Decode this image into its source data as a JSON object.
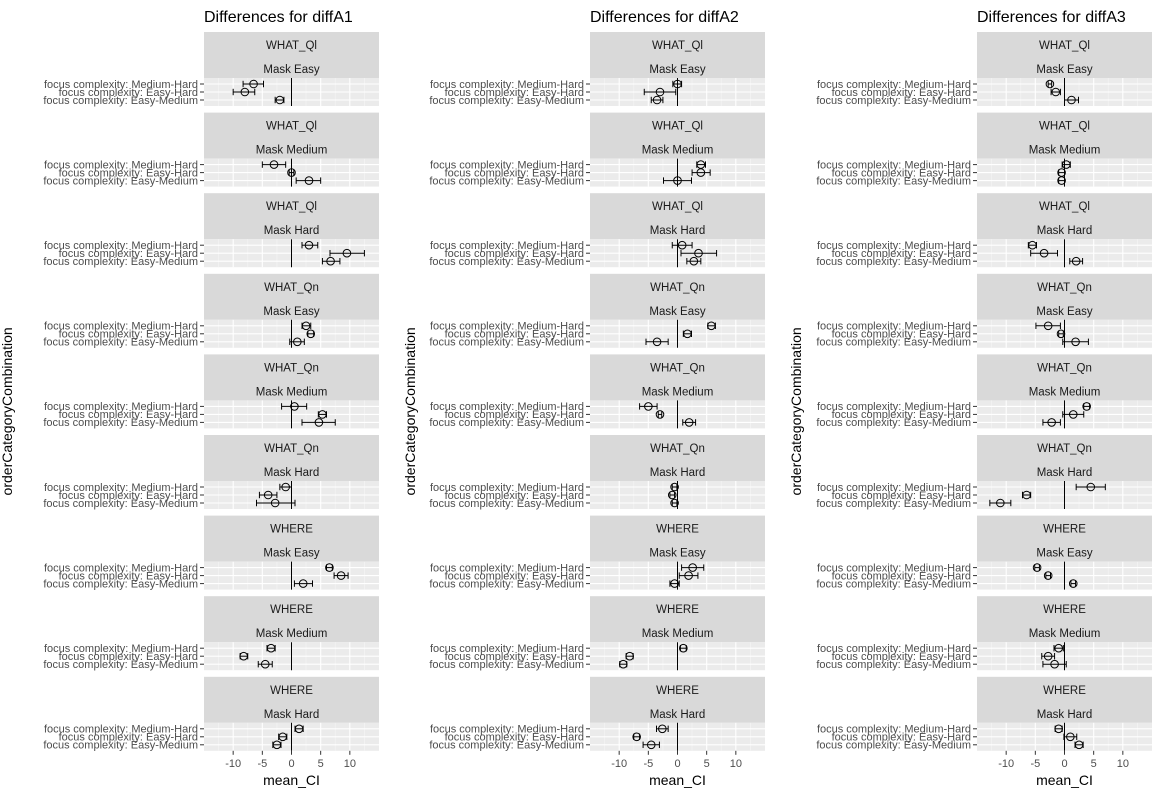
{
  "chart_data": {
    "type": "forest",
    "x_axis_label": "mean_CI",
    "y_axis_label": "orderCategoryCombination",
    "xlim": [
      -15,
      15
    ],
    "x_ticks": [
      -10,
      -5,
      0,
      5,
      10
    ],
    "y_categories": [
      "focus complexity: Medium-Hard",
      "focus complexity: Easy-Hard",
      "focus complexity: Easy-Medium"
    ],
    "facet_rows": [
      {
        "category": "WHAT_Ql",
        "mask": "Mask Easy"
      },
      {
        "category": "WHAT_Ql",
        "mask": "Mask Medium"
      },
      {
        "category": "WHAT_Ql",
        "mask": "Mask Hard"
      },
      {
        "category": "WHAT_Qn",
        "mask": "Mask Easy"
      },
      {
        "category": "WHAT_Qn",
        "mask": "Mask Medium"
      },
      {
        "category": "WHAT_Qn",
        "mask": "Mask Hard"
      },
      {
        "category": "WHERE",
        "mask": "Mask Easy"
      },
      {
        "category": "WHERE",
        "mask": "Mask Medium"
      },
      {
        "category": "WHERE",
        "mask": "Mask Hard"
      }
    ],
    "panels": [
      {
        "title": "Differences for diffA1",
        "show_y_axis_title": false,
        "facets": [
          {
            "points": [
              {
                "mean": -6.5,
                "low": -8.3,
                "high": -4.8
              },
              {
                "mean": -8.0,
                "low": -10.0,
                "high": -6.3
              },
              {
                "mean": -2.0,
                "low": -2.8,
                "high": -1.3
              }
            ]
          },
          {
            "points": [
              {
                "mean": -3.0,
                "low": -5.0,
                "high": -1.0
              },
              {
                "mean": 0.0,
                "low": -0.4,
                "high": 0.4
              },
              {
                "mean": 3.0,
                "low": 0.8,
                "high": 5.0
              }
            ]
          },
          {
            "points": [
              {
                "mean": 3.0,
                "low": 1.8,
                "high": 4.5
              },
              {
                "mean": 9.5,
                "low": 6.6,
                "high": 12.5
              },
              {
                "mean": 6.7,
                "low": 5.3,
                "high": 8.3
              }
            ]
          },
          {
            "points": [
              {
                "mean": 2.5,
                "low": 1.8,
                "high": 3.3
              },
              {
                "mean": 3.3,
                "low": 2.8,
                "high": 3.8
              },
              {
                "mean": 1.0,
                "low": -0.3,
                "high": 2.2
              }
            ]
          },
          {
            "points": [
              {
                "mean": 0.5,
                "low": -1.7,
                "high": 2.6
              },
              {
                "mean": 5.3,
                "low": 4.6,
                "high": 6.0
              },
              {
                "mean": 4.7,
                "low": 1.8,
                "high": 7.5
              }
            ]
          },
          {
            "points": [
              {
                "mean": -1.0,
                "low": -2.0,
                "high": 0.0
              },
              {
                "mean": -4.0,
                "low": -5.5,
                "high": -2.5
              },
              {
                "mean": -2.8,
                "low": -6.0,
                "high": 0.6
              }
            ]
          },
          {
            "points": [
              {
                "mean": 6.5,
                "low": 6.0,
                "high": 7.0
              },
              {
                "mean": 8.5,
                "low": 7.3,
                "high": 9.7
              },
              {
                "mean": 2.0,
                "low": 0.5,
                "high": 3.6
              }
            ]
          },
          {
            "points": [
              {
                "mean": -3.5,
                "low": -4.2,
                "high": -2.8
              },
              {
                "mean": -8.2,
                "low": -8.8,
                "high": -7.5
              },
              {
                "mean": -4.5,
                "low": -5.7,
                "high": -3.3
              }
            ]
          },
          {
            "points": [
              {
                "mean": 1.3,
                "low": 0.6,
                "high": 2.0
              },
              {
                "mean": -1.5,
                "low": -2.2,
                "high": -0.8
              },
              {
                "mean": -2.5,
                "low": -3.2,
                "high": -1.8
              }
            ]
          }
        ]
      },
      {
        "title": "Differences for diffA2",
        "show_y_axis_title": true,
        "facets": [
          {
            "points": [
              {
                "mean": 0.0,
                "low": -0.8,
                "high": 0.7
              },
              {
                "mean": -3.0,
                "low": -5.7,
                "high": -0.3
              },
              {
                "mean": -3.5,
                "low": -4.5,
                "high": -2.5
              }
            ]
          },
          {
            "points": [
              {
                "mean": 4.0,
                "low": 3.3,
                "high": 4.8
              },
              {
                "mean": 4.0,
                "low": 2.5,
                "high": 5.6
              },
              {
                "mean": 0.0,
                "low": -2.4,
                "high": 2.4
              }
            ]
          },
          {
            "points": [
              {
                "mean": 0.8,
                "low": -0.9,
                "high": 2.5
              },
              {
                "mean": 3.6,
                "low": 0.6,
                "high": 6.7
              },
              {
                "mean": 2.8,
                "low": 1.6,
                "high": 4.0
              }
            ]
          },
          {
            "points": [
              {
                "mean": 5.8,
                "low": 5.2,
                "high": 6.5
              },
              {
                "mean": 1.7,
                "low": 1.0,
                "high": 2.4
              },
              {
                "mean": -3.5,
                "low": -5.4,
                "high": -1.6
              }
            ]
          },
          {
            "points": [
              {
                "mean": -5.0,
                "low": -6.5,
                "high": -3.5
              },
              {
                "mean": -3.0,
                "low": -3.3,
                "high": -2.7
              },
              {
                "mean": 2.0,
                "low": 0.9,
                "high": 3.1
              }
            ]
          },
          {
            "points": [
              {
                "mean": -0.5,
                "low": -0.9,
                "high": -0.1
              },
              {
                "mean": -0.9,
                "low": -1.3,
                "high": -0.5
              },
              {
                "mean": -0.5,
                "low": -0.9,
                "high": -0.1
              }
            ]
          },
          {
            "points": [
              {
                "mean": 2.6,
                "low": 0.7,
                "high": 4.5
              },
              {
                "mean": 1.9,
                "low": 0.3,
                "high": 3.5
              },
              {
                "mean": -0.5,
                "low": -1.3,
                "high": 0.3
              }
            ]
          },
          {
            "points": [
              {
                "mean": 1.0,
                "low": 0.5,
                "high": 1.5
              },
              {
                "mean": -8.2,
                "low": -8.8,
                "high": -7.6
              },
              {
                "mean": -9.3,
                "low": -9.9,
                "high": -8.7
              }
            ]
          },
          {
            "points": [
              {
                "mean": -2.6,
                "low": -3.6,
                "high": -1.6
              },
              {
                "mean": -7.0,
                "low": -7.5,
                "high": -6.5
              },
              {
                "mean": -4.5,
                "low": -5.9,
                "high": -3.1
              }
            ]
          }
        ]
      },
      {
        "title": "Differences for diffA3",
        "show_y_axis_title": true,
        "facets": [
          {
            "points": [
              {
                "mean": -2.5,
                "low": -2.8,
                "high": -2.2
              },
              {
                "mean": -1.5,
                "low": -2.3,
                "high": -0.7
              },
              {
                "mean": 1.2,
                "low": 0.0,
                "high": 2.4
              }
            ]
          },
          {
            "points": [
              {
                "mean": 0.3,
                "low": -0.4,
                "high": 1.0
              },
              {
                "mean": -0.5,
                "low": -1.0,
                "high": 0.0
              },
              {
                "mean": -0.5,
                "low": -1.0,
                "high": 0.0
              }
            ]
          },
          {
            "points": [
              {
                "mean": -5.5,
                "low": -6.2,
                "high": -4.8
              },
              {
                "mean": -3.5,
                "low": -5.8,
                "high": -1.2
              },
              {
                "mean": 2.0,
                "low": 0.9,
                "high": 3.1
              }
            ]
          },
          {
            "points": [
              {
                "mean": -2.8,
                "low": -4.9,
                "high": -0.7
              },
              {
                "mean": -0.6,
                "low": -1.0,
                "high": -0.2
              },
              {
                "mean": 1.9,
                "low": -0.3,
                "high": 4.1
              }
            ]
          },
          {
            "points": [
              {
                "mean": 3.8,
                "low": 3.3,
                "high": 4.3
              },
              {
                "mean": 1.5,
                "low": -0.3,
                "high": 3.3
              },
              {
                "mean": -2.2,
                "low": -3.7,
                "high": -0.7
              }
            ]
          },
          {
            "points": [
              {
                "mean": 4.5,
                "low": 2.0,
                "high": 7.0
              },
              {
                "mean": -6.5,
                "low": -7.2,
                "high": -5.8
              },
              {
                "mean": -11.0,
                "low": -12.8,
                "high": -9.2
              }
            ]
          },
          {
            "points": [
              {
                "mean": -4.7,
                "low": -5.1,
                "high": -4.3
              },
              {
                "mean": -2.8,
                "low": -3.2,
                "high": -2.4
              },
              {
                "mean": 1.5,
                "low": 1.1,
                "high": 1.9
              }
            ]
          },
          {
            "points": [
              {
                "mean": -1.0,
                "low": -1.8,
                "high": -0.2
              },
              {
                "mean": -2.8,
                "low": -3.9,
                "high": -1.7
              },
              {
                "mean": -1.7,
                "low": -3.7,
                "high": 0.3
              }
            ]
          },
          {
            "points": [
              {
                "mean": -1.0,
                "low": -1.6,
                "high": -0.4
              },
              {
                "mean": 1.0,
                "low": -0.1,
                "high": 2.1
              },
              {
                "mean": 2.5,
                "low": 1.8,
                "high": 3.2
              }
            ]
          }
        ]
      }
    ]
  }
}
